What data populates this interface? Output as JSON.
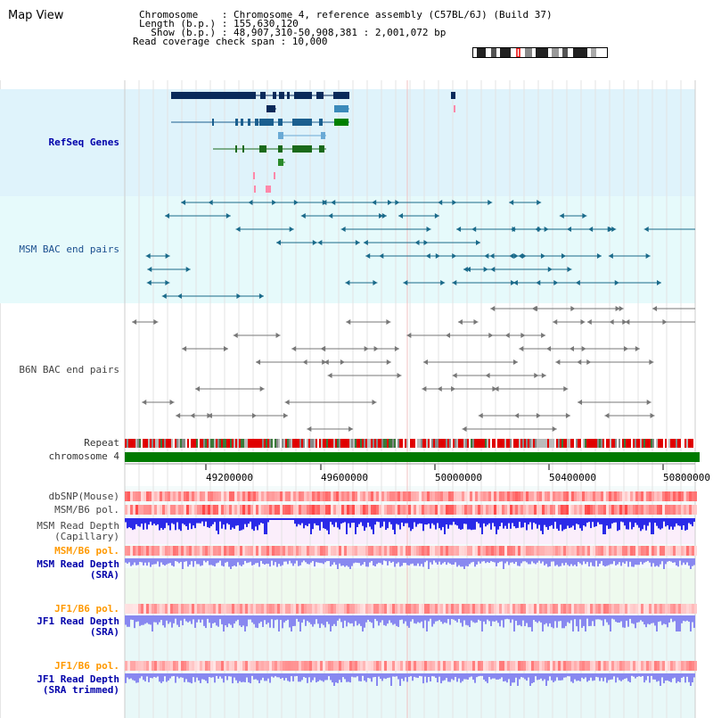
{
  "title": "Map View",
  "info": {
    "line1": "Chromosome    : Chromosome 4, reference assembly (C57BL/6J) (Build 37)",
    "line2": "Length (b.p.) : 155,630,120",
    "line3": "  Show (b.p.) : 48,907,310-50,908,381 : 2,001,072 bp",
    "line4": "Read coverage check span : 10,000"
  },
  "tracks": {
    "refseq": "RefSeq Genes",
    "msm_bac": "MSM BAC end pairs",
    "b6n_bac": "B6N BAC end pairs",
    "repeat": "Repeat",
    "chromosome": "chromosome 4",
    "dbsnp": "dbSNP(Mouse)",
    "msm_b6_pol1": "MSM/B6 pol.",
    "msm_read_depth_cap_1": "MSM Read Depth",
    "msm_read_depth_cap_2": "(Capillary)",
    "msm_b6_pol2": "MSM/B6 pol.",
    "msm_read_depth_sra_1": "MSM Read Depth",
    "msm_read_depth_sra_2": "(SRA)",
    "jf1_b6_pol1": "JF1/B6 pol.",
    "jf1_read_depth_sra_1": "JF1 Read Depth",
    "jf1_read_depth_sra_2": "(SRA)",
    "jf1_b6_pol2": "JF1/B6 pol.",
    "jf1_read_depth_trim_1": "JF1 Read Depth",
    "jf1_read_depth_trim_2": "(SRA trimmed)"
  },
  "axis_ticks": [
    "49200000",
    "49600000",
    "50000000",
    "50400000",
    "50800000"
  ],
  "colors": {
    "refseq_bg": "#dff3fb",
    "msm_bg": "#e6fafb",
    "depth_blue": "#2a2ae8",
    "depth_light": "#8888f0",
    "pol_red": "#f05050",
    "chrom_green": "#007a00"
  }
}
